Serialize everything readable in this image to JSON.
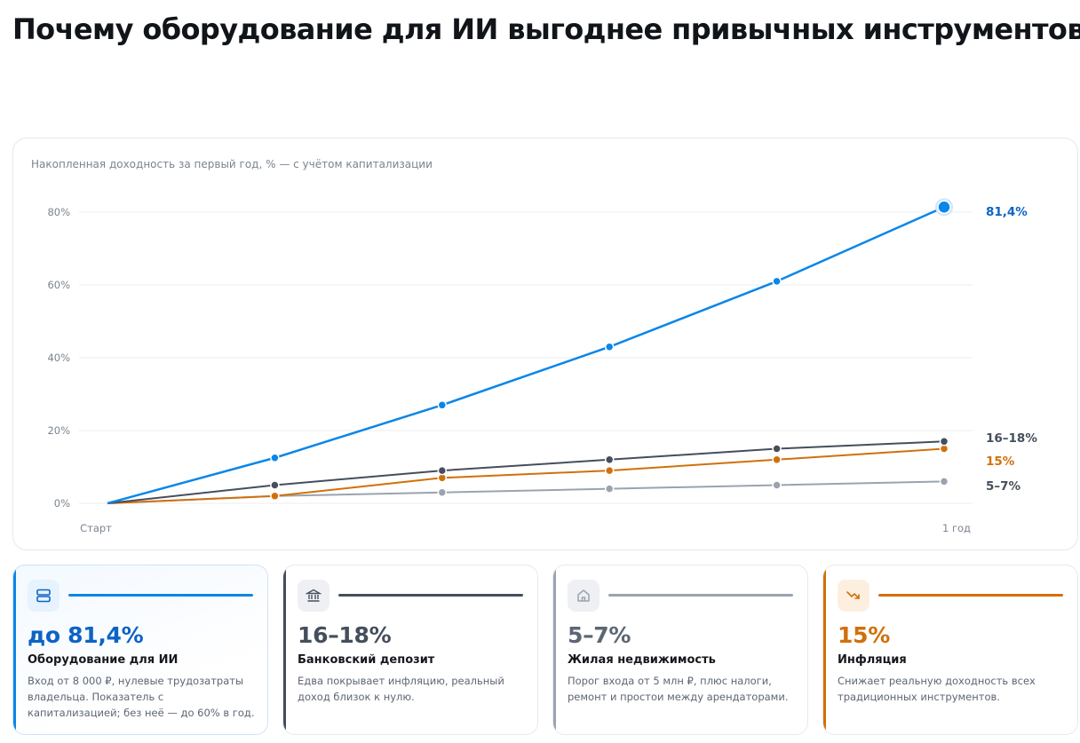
{
  "page": {
    "title": "Почему оборудование для ИИ выгоднее привычных инструментов"
  },
  "colors": {
    "ai": "#0a86e8",
    "deposit": "#454e5c",
    "inflation": "#d1700b",
    "realty": "#9aa3af",
    "ai_text": "#0c63c4"
  },
  "chart_data": {
    "type": "line",
    "caption": "Накопленная доходность за первый год, % — с учётом капитализации",
    "x": [
      0,
      1,
      2,
      3,
      4,
      5
    ],
    "x_tick_labels": [
      "Старт",
      "",
      "",
      "",
      "",
      "1 год"
    ],
    "ylim": [
      0,
      80
    ],
    "y_ticks": [
      0,
      20,
      40,
      60,
      80
    ],
    "y_tick_labels": [
      "0%",
      "20%",
      "40%",
      "60%",
      "80%"
    ],
    "grid": true,
    "series": [
      {
        "key": "ai",
        "end_label": "81,4%",
        "values": [
          0,
          12.5,
          27,
          43,
          61,
          81.4
        ]
      },
      {
        "key": "deposit",
        "end_label": "16–18%",
        "values": [
          0,
          5,
          9,
          12,
          15,
          17
        ]
      },
      {
        "key": "inflation",
        "end_label": "15%",
        "values": [
          0,
          2,
          7,
          9,
          12,
          15
        ]
      },
      {
        "key": "realty",
        "end_label": "5–7%",
        "values": [
          0,
          2,
          3,
          4,
          5,
          6
        ]
      }
    ]
  },
  "cards": [
    {
      "value": "до 81,4%",
      "title": "Оборудование для ИИ",
      "desc": "Вход от 8 000 ₽, нулевые трудозатраты владельца. Показатель с капитализацией; без неё — до 60% в год.",
      "icon": "server-icon"
    },
    {
      "value": "16–18%",
      "title": "Банковский депозит",
      "desc": "Едва покрывает инфляцию, реальный доход близок к нулю.",
      "icon": "bank-icon"
    },
    {
      "value": "5–7%",
      "title": "Жилая недвижимость",
      "desc": "Порог входа от 5 млн ₽, плюс налоги, ремонт и простои между арендаторами.",
      "icon": "house-icon"
    },
    {
      "value": "15%",
      "title": "Инфляция",
      "desc": "Снижает реальную доходность всех традиционных инструментов.",
      "icon": "trend-down-icon"
    }
  ]
}
